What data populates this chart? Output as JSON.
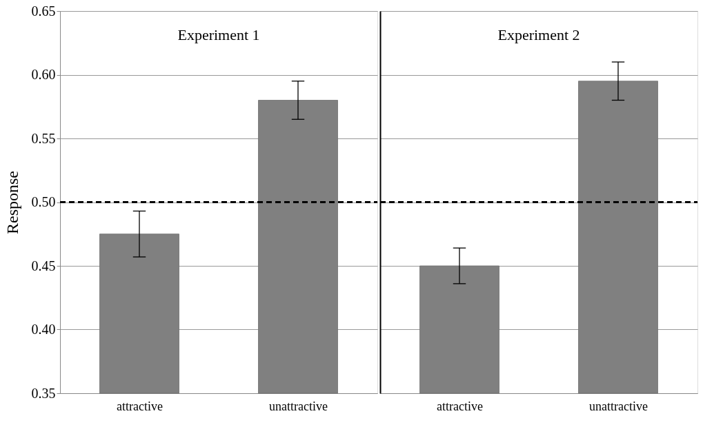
{
  "chart_data": [
    {
      "type": "bar",
      "title": "Experiment 1",
      "ylabel": "Response",
      "categories": [
        "attractive",
        "unattractive"
      ],
      "values": [
        0.475,
        0.58
      ],
      "errors": [
        0.018,
        0.015
      ],
      "color": "#808080",
      "ylim": [
        0.35,
        0.65
      ],
      "yticks": [
        0.35,
        {
          "value": 0.4,
          "label": "0.40"
        },
        0.45,
        {
          "value": 0.5,
          "label": "0.50"
        },
        0.55,
        {
          "value": 0.6,
          "label": "0.60"
        },
        0.65
      ],
      "grid": "y",
      "ref_lines": [
        {
          "axis": "y",
          "value": 0.5,
          "color": "#000000",
          "line_style": "dashed"
        }
      ]
    },
    {
      "type": "bar",
      "title": "Experiment 2",
      "categories": [
        "attractive",
        "unattractive"
      ],
      "values": [
        0.45,
        0.595
      ],
      "errors": [
        0.014,
        0.015
      ],
      "color": "#808080",
      "ylim": [
        0.35,
        0.65
      ],
      "yticks": [
        0.35,
        0.4,
        0.45,
        0.5,
        0.55,
        0.6,
        0.65
      ],
      "grid": "y",
      "tick_labels": "x",
      "ref_lines": [
        {
          "axis": "y",
          "value": 0.5,
          "color": "#000000",
          "line_style": "dashed"
        }
      ]
    }
  ]
}
